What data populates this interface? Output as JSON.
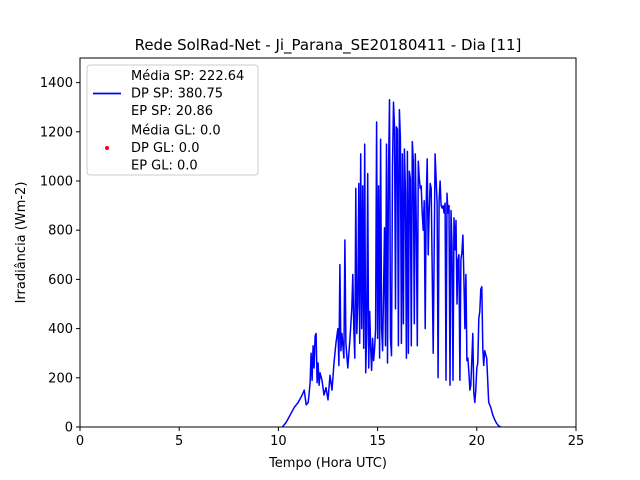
{
  "chart_data": {
    "type": "line",
    "title": "Rede SolRad-Net - Ji_Parana_SE20180411 - Dia [11]",
    "xlabel": "Tempo (Hora UTC)",
    "ylabel": "Irradiância (Wm-2)",
    "xlim": [
      0,
      25
    ],
    "ylim": [
      0,
      1500
    ],
    "xticks": [
      0,
      5,
      10,
      15,
      20,
      25
    ],
    "yticks": [
      0,
      200,
      400,
      600,
      800,
      1000,
      1200,
      1400
    ],
    "grid": false,
    "legend_position": "top-left",
    "legend": [
      {
        "lines": [
          "Média SP: 222.64",
          "DP SP: 380.75",
          "EP SP: 20.86"
        ],
        "marker": "line",
        "color": "#0000ff"
      },
      {
        "lines": [
          "Média GL: 0.0",
          "DP GL: 0.0",
          "EP GL: 0.0"
        ],
        "marker": "dot",
        "color": "#ff0000"
      }
    ],
    "series": [
      {
        "color": "#0000ff",
        "x": [
          10.2,
          10.4,
          10.6,
          10.8,
          11.0,
          11.2,
          11.3,
          11.4,
          11.5,
          11.55,
          11.6,
          11.65,
          11.7,
          11.75,
          11.8,
          11.85,
          11.9,
          11.95,
          12.0,
          12.05,
          12.1,
          12.2,
          12.3,
          12.4,
          12.5,
          12.6,
          12.7,
          12.8,
          12.9,
          13.0,
          13.05,
          13.1,
          13.15,
          13.2,
          13.3,
          13.35,
          13.4,
          13.5,
          13.6,
          13.7,
          13.75,
          13.8,
          13.85,
          13.9,
          13.95,
          14.0,
          14.05,
          14.1,
          14.15,
          14.2,
          14.25,
          14.3,
          14.35,
          14.4,
          14.45,
          14.5,
          14.55,
          14.6,
          14.65,
          14.7,
          14.75,
          14.8,
          14.85,
          14.9,
          14.95,
          15.0,
          15.05,
          15.1,
          15.15,
          15.2,
          15.25,
          15.3,
          15.35,
          15.4,
          15.45,
          15.5,
          15.55,
          15.6,
          15.65,
          15.7,
          15.75,
          15.8,
          15.85,
          15.9,
          15.95,
          16.0,
          16.05,
          16.1,
          16.15,
          16.2,
          16.25,
          16.3,
          16.35,
          16.4,
          16.45,
          16.5,
          16.55,
          16.6,
          16.65,
          16.7,
          16.75,
          16.8,
          16.85,
          16.9,
          16.95,
          17.0,
          17.05,
          17.1,
          17.15,
          17.2,
          17.25,
          17.3,
          17.35,
          17.4,
          17.45,
          17.5,
          17.55,
          17.6,
          17.65,
          17.7,
          17.8,
          17.9,
          18.0,
          18.05,
          18.1,
          18.15,
          18.2,
          18.25,
          18.3,
          18.35,
          18.4,
          18.45,
          18.5,
          18.55,
          18.6,
          18.65,
          18.7,
          18.75,
          18.8,
          18.85,
          18.9,
          18.95,
          19.0,
          19.05,
          19.1,
          19.15,
          19.2,
          19.25,
          19.3,
          19.35,
          19.4,
          19.45,
          19.5,
          19.55,
          19.6,
          19.65,
          19.7,
          19.75,
          19.8,
          19.85,
          19.9,
          19.95,
          20.0,
          20.05,
          20.1,
          20.15,
          20.2,
          20.25,
          20.3,
          20.35,
          20.4,
          20.5,
          20.6,
          20.7,
          20.8,
          20.9,
          21.0,
          21.1,
          21.2
        ],
        "y": [
          0,
          20,
          50,
          80,
          100,
          130,
          150,
          90,
          100,
          140,
          180,
          300,
          190,
          330,
          240,
          370,
          380,
          180,
          260,
          170,
          220,
          190,
          130,
          160,
          110,
          210,
          150,
          260,
          340,
          400,
          250,
          660,
          310,
          380,
          280,
          760,
          340,
          240,
          350,
          480,
          620,
          400,
          280,
          970,
          380,
          500,
          990,
          340,
          1110,
          400,
          980,
          320,
          1150,
          220,
          380,
          1030,
          240,
          470,
          320,
          230,
          360,
          270,
          320,
          400,
          1240,
          360,
          980,
          280,
          1170,
          400,
          310,
          560,
          810,
          330,
          1150,
          260,
          1030,
          1330,
          360,
          290,
          1060,
          1320,
          1220,
          480,
          1220,
          1210,
          330,
          1290,
          1170,
          340,
          1110,
          420,
          1130,
          960,
          280,
          1120,
          300,
          1040,
          1010,
          330,
          1160,
          1080,
          420,
          1110,
          820,
          330,
          1080,
          1010,
          970,
          980,
          870,
          800,
          920,
          400,
          910,
          1090,
          700,
          880,
          990,
          970,
          300,
          1110,
          910,
          200,
          920,
          1000,
          900,
          890,
          900,
          870,
          910,
          190,
          950,
          870,
          900,
          170,
          880,
          740,
          190,
          850,
          720,
          840,
          500,
          680,
          700,
          190,
          680,
          710,
          780,
          600,
          400,
          620,
          270,
          280,
          220,
          150,
          170,
          270,
          380,
          140,
          100,
          150,
          240,
          260,
          440,
          470,
          560,
          570,
          320,
          250,
          310,
          280,
          100,
          80,
          50,
          30,
          15,
          5,
          0
        ]
      },
      {
        "color": "#ff0000",
        "x": [],
        "y": []
      }
    ]
  }
}
